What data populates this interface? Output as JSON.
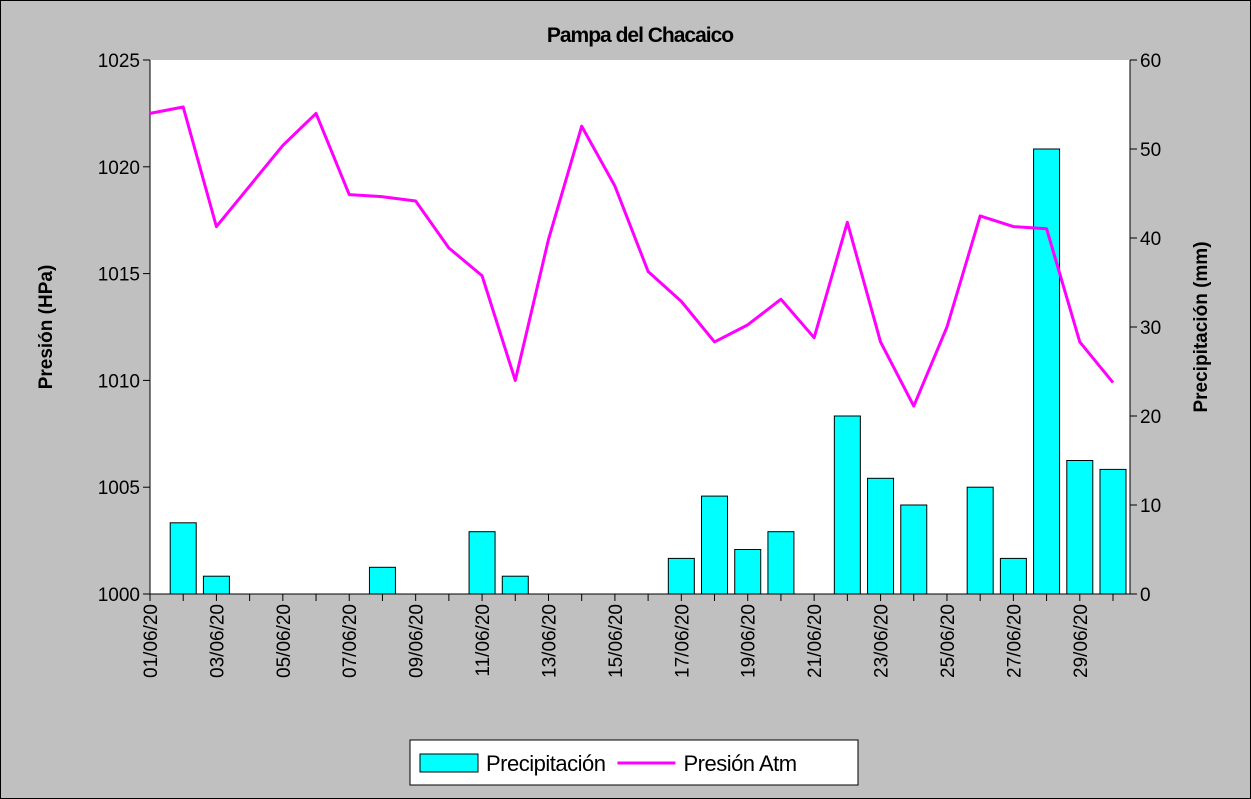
{
  "chart_data": {
    "type": "combo",
    "title": "Pampa del Chacaico",
    "y_label": "Presión (HPa)",
    "y2_label": "Precipitación (mm)",
    "categories": [
      "01/06/20",
      null,
      "03/06/20",
      null,
      "05/06/20",
      null,
      "07/06/20",
      null,
      "09/06/20",
      null,
      "11/06/20",
      null,
      "13/06/20",
      null,
      "15/06/20",
      null,
      "17/06/20",
      null,
      "19/06/20",
      null,
      "21/06/20",
      null,
      "23/06/20",
      null,
      "25/06/20",
      null,
      "27/06/20",
      null,
      "29/06/20",
      null
    ],
    "series": [
      {
        "name": "Precipitación",
        "type": "bar",
        "axis": "y2",
        "color": "#00ffff",
        "values": [
          0,
          8,
          2,
          0,
          0,
          0,
          0,
          3,
          0,
          0,
          7,
          2,
          0,
          0,
          0,
          0,
          4,
          11,
          5,
          7,
          0,
          20,
          13,
          10,
          0,
          12,
          4,
          50,
          15,
          14
        ]
      },
      {
        "name": "Presión Atm",
        "type": "line",
        "axis": "y",
        "color": "#ff00ff",
        "values": [
          1022.5,
          1022.8,
          1017.2,
          1019.1,
          1021.0,
          1022.5,
          1018.7,
          1018.6,
          1018.4,
          1016.2,
          1014.9,
          1010.0,
          1016.6,
          1021.9,
          1019.1,
          1015.1,
          1013.7,
          1011.8,
          1012.6,
          1013.8,
          1012.0,
          1017.4,
          1011.8,
          1008.8,
          1012.5,
          1017.7,
          1017.2,
          1017.1,
          1011.8,
          1009.9
        ]
      }
    ],
    "ylim": [
      1000,
      1025
    ],
    "yticks": [
      1000,
      1005,
      1010,
      1015,
      1020,
      1025
    ],
    "y2lim": [
      0,
      60
    ],
    "y2ticks": [
      0,
      10,
      20,
      30,
      40,
      50,
      60
    ],
    "legend": "bottom"
  }
}
